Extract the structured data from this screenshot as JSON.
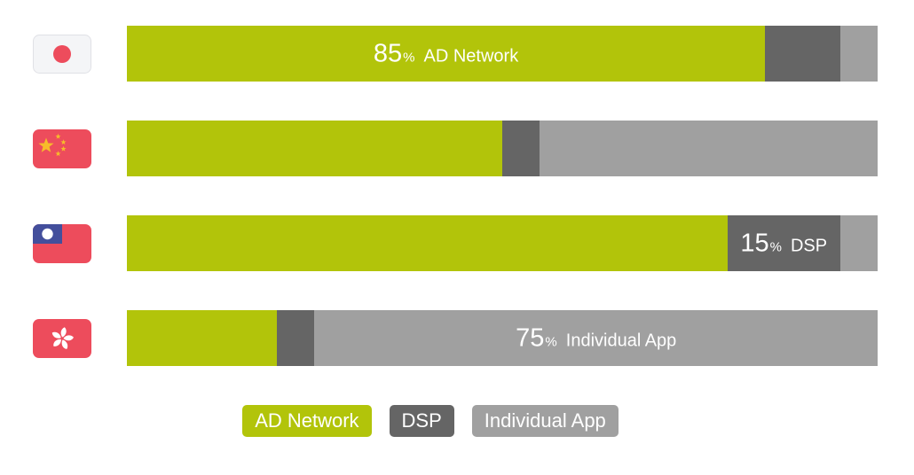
{
  "page": {
    "background": "#ffffff",
    "text_color": "#ffffff"
  },
  "chart_data": {
    "type": "bar",
    "orientation": "horizontal",
    "stacked": true,
    "value_unit": "%",
    "x_range": [
      0,
      100
    ],
    "grid": false,
    "axes_visible": false,
    "categories": [
      "Japan",
      "China",
      "Taiwan",
      "Hong Kong"
    ],
    "series": [
      {
        "name": "AD Network",
        "color": "#b2c40a",
        "values": [
          85,
          50,
          80,
          20
        ]
      },
      {
        "name": "DSP",
        "color": "#656565",
        "values": [
          10,
          5,
          15,
          5
        ]
      },
      {
        "name": "Individual App",
        "color": "#a0a0a0",
        "values": [
          5,
          45,
          5,
          75
        ]
      }
    ],
    "bar_labels": [
      {
        "row_index": 0,
        "series_index": 0,
        "value": "85",
        "unit": "%",
        "text": "AD Network"
      },
      {
        "row_index": 2,
        "series_index": 1,
        "value": "15",
        "unit": "%",
        "text": "DSP"
      },
      {
        "row_index": 3,
        "series_index": 2,
        "value": "75",
        "unit": "%",
        "text": "Individual App"
      }
    ],
    "legend": {
      "position": "bottom",
      "items": [
        "AD Network",
        "DSP",
        "Individual App"
      ]
    }
  },
  "flags": {
    "colors": {
      "red": "#ed4c5c",
      "gold": "#f7bb2a",
      "blue": "#434f9c",
      "white": "#ffffff",
      "japan_bg": "#f4f5f7",
      "japan_border": "#e0e1e6"
    },
    "items": [
      {
        "country": "Japan",
        "icon": "flag-japan-icon"
      },
      {
        "country": "China",
        "icon": "flag-china-icon"
      },
      {
        "country": "Taiwan",
        "icon": "flag-taiwan-icon"
      },
      {
        "country": "Hong Kong",
        "icon": "flag-hong-kong-icon"
      }
    ]
  }
}
